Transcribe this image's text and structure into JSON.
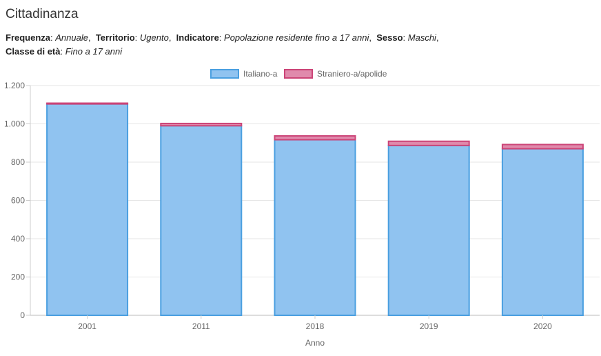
{
  "page": {
    "title": "Cittadinanza"
  },
  "filters": [
    {
      "key": "Frequenza",
      "value": "Annuale",
      "sep": ","
    },
    {
      "key": "Territorio",
      "value": "Ugento",
      "sep": ","
    },
    {
      "key": "Indicatore",
      "value": "Popolazione residente fino a 17 anni",
      "sep": ","
    },
    {
      "key": "Sesso",
      "value": "Maschi",
      "sep": ","
    },
    {
      "key": "Classe di età",
      "value": "Fino a 17 anni",
      "sep": ""
    }
  ],
  "chart_data": {
    "type": "bar",
    "stacked": true,
    "title": "",
    "xlabel": "Anno",
    "ylabel": "",
    "categories": [
      "2001",
      "2011",
      "2018",
      "2019",
      "2020"
    ],
    "ylim": [
      0,
      1200
    ],
    "yticks": [
      0,
      200,
      400,
      600,
      800,
      1000,
      1200
    ],
    "ytick_labels": [
      "0",
      "200",
      "400",
      "600",
      "800",
      "1.000",
      "1.200"
    ],
    "grid": true,
    "legend_position": "top-center",
    "series": [
      {
        "name": "Italiano-a",
        "values": [
          1104,
          990,
          917,
          887,
          870
        ],
        "fill": "#90c3f0",
        "stroke": "#4a9fe0"
      },
      {
        "name": "Straniero-a/apolide",
        "values": [
          4,
          12,
          20,
          22,
          22
        ],
        "fill": "#e08aac",
        "stroke": "#cc4477"
      }
    ]
  }
}
